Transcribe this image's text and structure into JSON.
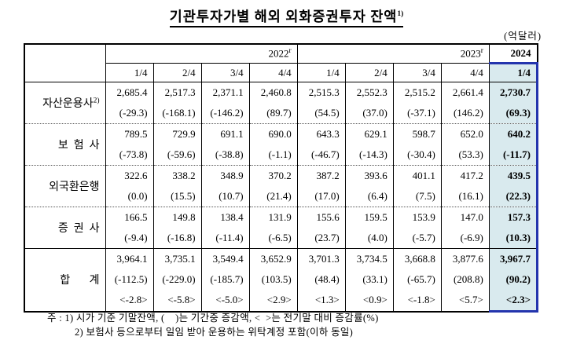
{
  "title": {
    "text": "기관투자가별 해외 외화증권투자 잔액",
    "sup": "1)"
  },
  "unit": "(억달러)",
  "table": {
    "years": [
      {
        "label": "2022",
        "sup": "r"
      },
      {
        "label": "2023",
        "sup": "r"
      },
      {
        "label": "2024",
        "sup": ""
      }
    ],
    "quarters": [
      "1/4",
      "2/4",
      "3/4",
      "4/4",
      "1/4",
      "2/4",
      "3/4",
      "4/4",
      "1/4"
    ],
    "rows": [
      {
        "label": "자산운용사",
        "label_sup": "2)",
        "v": [
          "2,685.4",
          "2,517.3",
          "2,371.1",
          "2,460.8",
          "2,515.3",
          "2,552.3",
          "2,515.2",
          "2,661.4",
          "2,730.7"
        ],
        "c": [
          "(-29.3)",
          "(-168.1)",
          "(-146.2)",
          "(89.7)",
          "(54.5)",
          "(37.0)",
          "(-37.1)",
          "(146.2)",
          "(69.3)"
        ]
      },
      {
        "label": "보  험  사",
        "v": [
          "789.5",
          "729.9",
          "691.1",
          "690.0",
          "643.3",
          "629.1",
          "598.7",
          "652.0",
          "640.2"
        ],
        "c": [
          "(-73.8)",
          "(-59.6)",
          "(-38.8)",
          "(-1.1)",
          "(-46.7)",
          "(-14.3)",
          "(-30.4)",
          "(53.3)",
          "(-11.7)"
        ]
      },
      {
        "label": "외국환은행",
        "v": [
          "322.6",
          "338.2",
          "348.9",
          "370.2",
          "387.2",
          "393.6",
          "401.1",
          "417.2",
          "439.5"
        ],
        "c": [
          "(0.0)",
          "(15.5)",
          "(10.7)",
          "(21.4)",
          "(17.0)",
          "(6.4)",
          "(7.5)",
          "(16.1)",
          "(22.3)"
        ]
      },
      {
        "label": "증  권  사",
        "v": [
          "166.5",
          "149.8",
          "138.4",
          "131.9",
          "155.6",
          "159.5",
          "153.9",
          "147.0",
          "157.3"
        ],
        "c": [
          "(-9.4)",
          "(-16.8)",
          "(-11.4)",
          "(-6.5)",
          "(23.7)",
          "(4.0)",
          "(-5.7)",
          "(-6.9)",
          "(10.3)"
        ]
      },
      {
        "label": "합       계",
        "v": [
          "3,964.1",
          "3,735.1",
          "3,549.4",
          "3,652.9",
          "3,701.3",
          "3,734.5",
          "3,668.8",
          "3,877.6",
          "3,967.7"
        ],
        "c": [
          "(-112.5)",
          "(-229.0)",
          "(-185.7)",
          "(103.5)",
          "(48.4)",
          "(33.1)",
          "(-65.7)",
          "(208.8)",
          "(90.2)"
        ],
        "r": [
          "<-2.8>",
          "<-5.8>",
          "<-5.0>",
          "<2.9>",
          "<1.3>",
          "<0.9>",
          "<-1.8>",
          "<5.7>",
          "<2.3>"
        ]
      }
    ]
  },
  "footnotes": {
    "line1": "주 : 1) 시가 기준 기말잔액, (    )는 기간중 증감액, <  >는 전기말 대비 증감률(%)",
    "line2": "2) 보험사 등으로부터 일임 받아 운용하는 위탁계정 포함(이하 동일)"
  },
  "colors": {
    "highlight_bg": "#d9eaee",
    "highlight_border": "#2334ad"
  }
}
